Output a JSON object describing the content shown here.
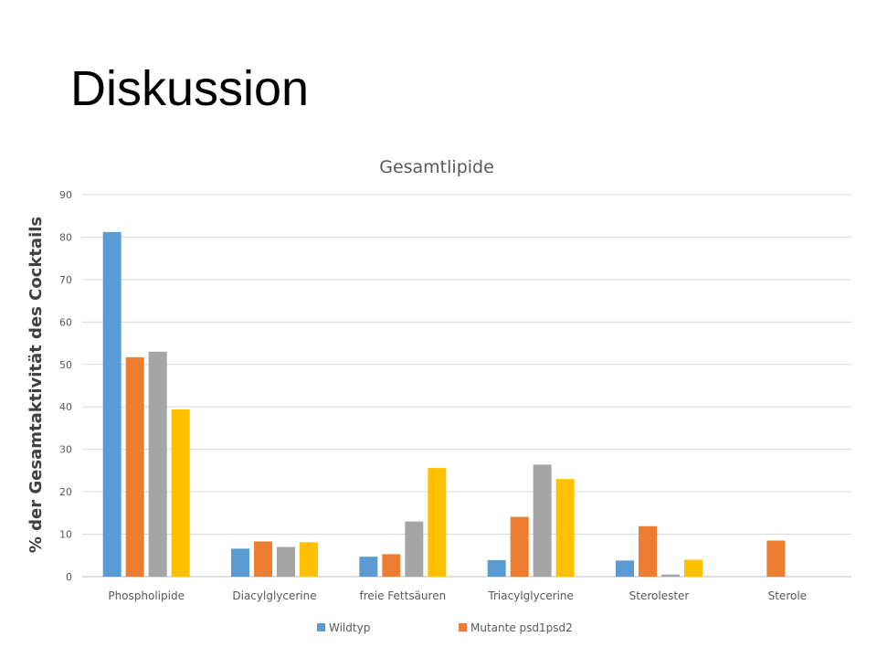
{
  "slide": {
    "title": "Diskussion"
  },
  "chart_data": {
    "type": "bar",
    "title": "Gesamtlipide",
    "xlabel": "",
    "ylabel": "% der Gesamtaktivität des Cocktails",
    "ylim": [
      0,
      90
    ],
    "yticks": [
      0,
      10,
      20,
      30,
      40,
      50,
      60,
      70,
      80,
      90
    ],
    "grid": true,
    "legend_position": "bottom",
    "categories": [
      "Phospholipide",
      "Diacylglycerine",
      "freie Fettsäuren",
      "Triacylglycerine",
      "Sterolester",
      "Sterole"
    ],
    "series": [
      {
        "name": "Wildtyp",
        "color": "#5B9BD5",
        "values": [
          81.2,
          6.6,
          4.7,
          3.9,
          3.8,
          null
        ]
      },
      {
        "name": "Mutante psd1psd2",
        "color": "#ED7D31",
        "values": [
          51.7,
          8.3,
          5.3,
          14.1,
          11.9,
          8.5
        ]
      },
      {
        "color": "#A5A5A5",
        "values": [
          53.0,
          7.0,
          13.0,
          26.4,
          0.5,
          null
        ]
      },
      {
        "color": "#FFC000",
        "values": [
          39.4,
          8.1,
          25.6,
          23.0,
          4.0,
          null
        ]
      }
    ]
  }
}
